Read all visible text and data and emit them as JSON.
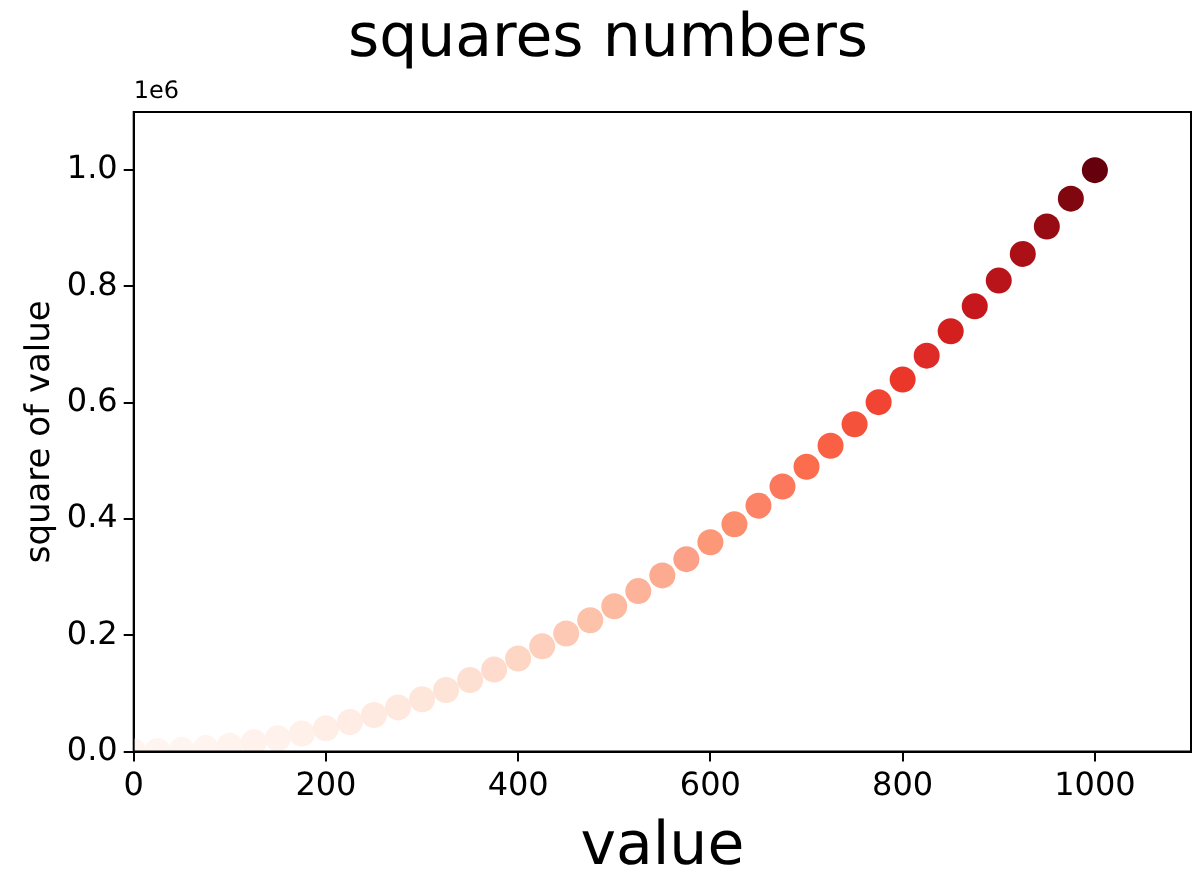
{
  "chart_data": {
    "type": "scatter",
    "title": "squares numbers",
    "xlabel": "value",
    "ylabel": "square of value",
    "annotations": [
      "1e6"
    ],
    "x": [
      0,
      25,
      50,
      75,
      100,
      125,
      150,
      175,
      200,
      225,
      250,
      275,
      300,
      325,
      350,
      375,
      400,
      425,
      450,
      475,
      500,
      525,
      550,
      575,
      600,
      625,
      650,
      675,
      700,
      725,
      750,
      775,
      800,
      825,
      850,
      875,
      900,
      925,
      950,
      975,
      1000
    ],
    "values": [
      0,
      0.001,
      0.003,
      0.006,
      0.01,
      0.016,
      0.023,
      0.031,
      0.04,
      0.051,
      0.063,
      0.076,
      0.09,
      0.106,
      0.123,
      0.141,
      0.16,
      0.181,
      0.203,
      0.226,
      0.25,
      0.276,
      0.303,
      0.331,
      0.36,
      0.391,
      0.423,
      0.456,
      0.49,
      0.526,
      0.563,
      0.601,
      0.64,
      0.681,
      0.723,
      0.766,
      0.81,
      0.856,
      0.903,
      0.951,
      1
    ],
    "colors": [
      "#fff5f0",
      "#fff5f0",
      "#fff5f0",
      "#fff4ef",
      "#fff3ee",
      "#fff2ec",
      "#fff1eb",
      "#fff0e9",
      "#ffeee6",
      "#ffece4",
      "#ffeae1",
      "#ffe8de",
      "#fee6da",
      "#fee3d7",
      "#fee0d2",
      "#fedbcc",
      "#fed6c4",
      "#fdcfbc",
      "#fdc9b4",
      "#fdc2aa",
      "#fcbba1",
      "#fcb399",
      "#fcaa90",
      "#fca187",
      "#fc9778",
      "#fc8d6d",
      "#fc8366",
      "#fb785c",
      "#fb6d4d",
      "#f96044",
      "#f5523b",
      "#f14432",
      "#eb372a",
      "#df2b27",
      "#d3201f",
      "#c6171c",
      "#b9141a",
      "#ab1016",
      "#970c13",
      "#800610",
      "#67000d"
    ],
    "marker": "circle",
    "xlim": [
      0,
      1100
    ],
    "xticks": [
      0,
      200,
      400,
      600,
      800,
      1000
    ],
    "ylim": [
      0,
      1.1
    ],
    "yticks": [
      {
        "value": 0,
        "label": "0.0"
      },
      0.2,
      0.4,
      0.6,
      0.8,
      {
        "value": 1,
        "label": "1.0"
      }
    ],
    "grid": false,
    "legend": false
  }
}
